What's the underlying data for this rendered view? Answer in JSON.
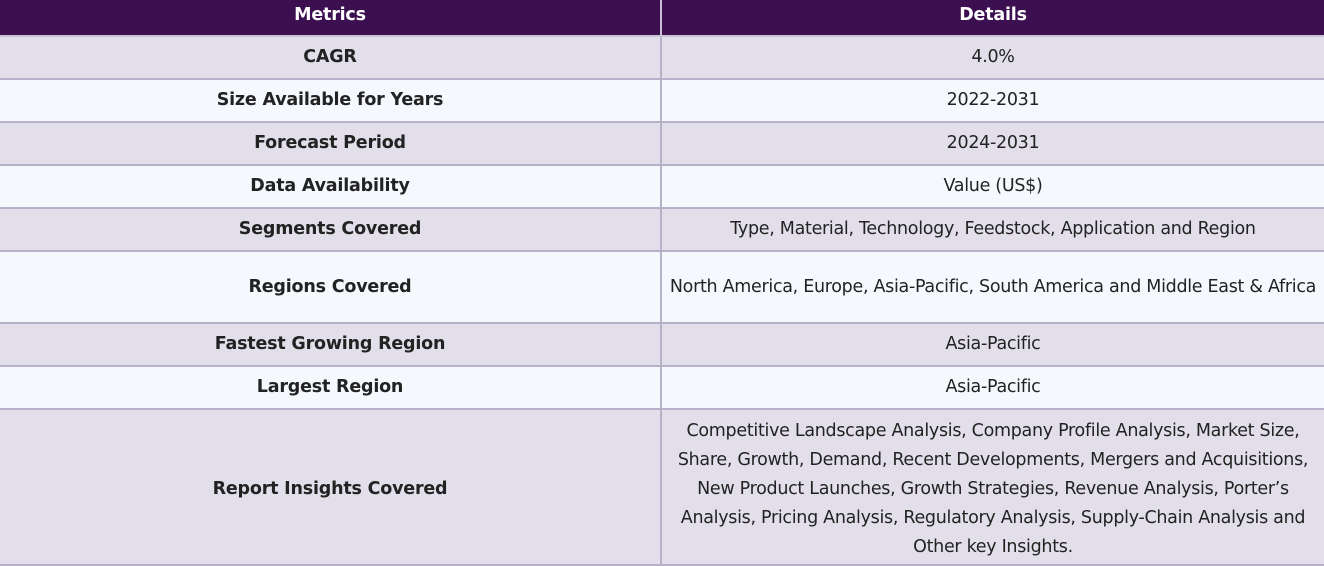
{
  "table": {
    "headers": [
      "Metrics",
      "Details"
    ],
    "rows": [
      {
        "metric": "CAGR",
        "details": "4.0%"
      },
      {
        "metric": "Size Available for Years",
        "details": "2022-2031"
      },
      {
        "metric": "Forecast Period",
        "details": "2024-2031"
      },
      {
        "metric": "Data Availability",
        "details": "Value (US$)"
      },
      {
        "metric": "Segments Covered",
        "details": "Type, Material, Technology, Feedstock, Application and Region"
      },
      {
        "metric": "Regions Covered",
        "details": "North America, Europe, Asia-Pacific, South America and Middle East & Africa"
      },
      {
        "metric": "Fastest Growing Region",
        "details": "Asia-Pacific"
      },
      {
        "metric": "Largest Region",
        "details": "Asia-Pacific"
      },
      {
        "metric": "Report Insights Covered",
        "details": "Competitive Landscape Analysis, Company Profile Analysis, Market Size, Share, Growth, Demand, Recent Developments, Mergers and Acquisitions, New Product Launches, Growth Strategies, Revenue Analysis, Porter’s Analysis, Pricing Analysis, Regulatory Analysis, Supply-Chain Analysis and Other key Insights."
      }
    ]
  },
  "colors": {
    "header_bg": "#3b0f50",
    "row_odd": "#e3dfea",
    "row_even": "#f5f9fd",
    "border": "#b7b0c9"
  }
}
